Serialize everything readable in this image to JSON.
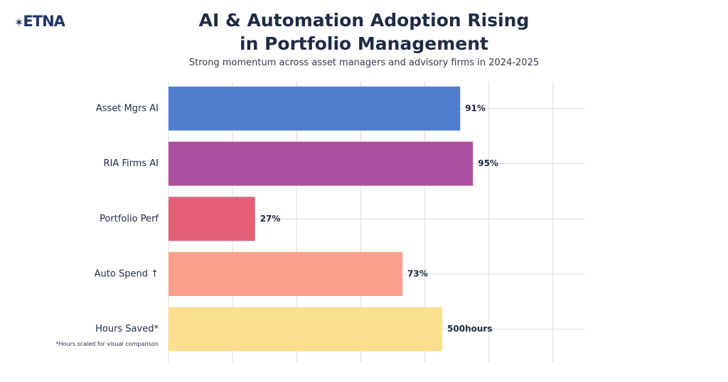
{
  "logo": "ETNA",
  "chart_data": {
    "type": "hbar",
    "title": "AI & Automation Adoption Rising in Portfolio Management",
    "subtitle": "Strong momentum across asset managers and advisory firms in 2024-2025",
    "categories": [
      "Asset Mgrs AI",
      "RIA Firms AI",
      "Portfolio Perf",
      "Auto Spend ↑",
      "Hours Saved*"
    ],
    "footnote": "*Hours scaled for visual comparison",
    "series": [
      {
        "colors": [
          "#4f7fcc",
          "#ad4e9e",
          "#e45f78",
          "#fba08e",
          null
        ],
        "values": [
          91,
          95,
          27,
          73,
          null
        ],
        "value_labels": [
          "91%",
          "95%",
          "27%",
          "73%",
          null
        ]
      },
      {
        "axis": "x2",
        "colors": [
          null,
          null,
          null,
          null,
          "#fde08f"
        ],
        "values": [
          null,
          null,
          null,
          null,
          500
        ],
        "value_labels": [
          null,
          null,
          null,
          null,
          "500hours"
        ]
      }
    ],
    "xlim": [
      0,
      130
    ],
    "xticks": [
      0,
      20,
      40,
      60,
      80,
      100,
      120
    ],
    "x2lim": [
      0,
      761
    ],
    "grid": true
  }
}
